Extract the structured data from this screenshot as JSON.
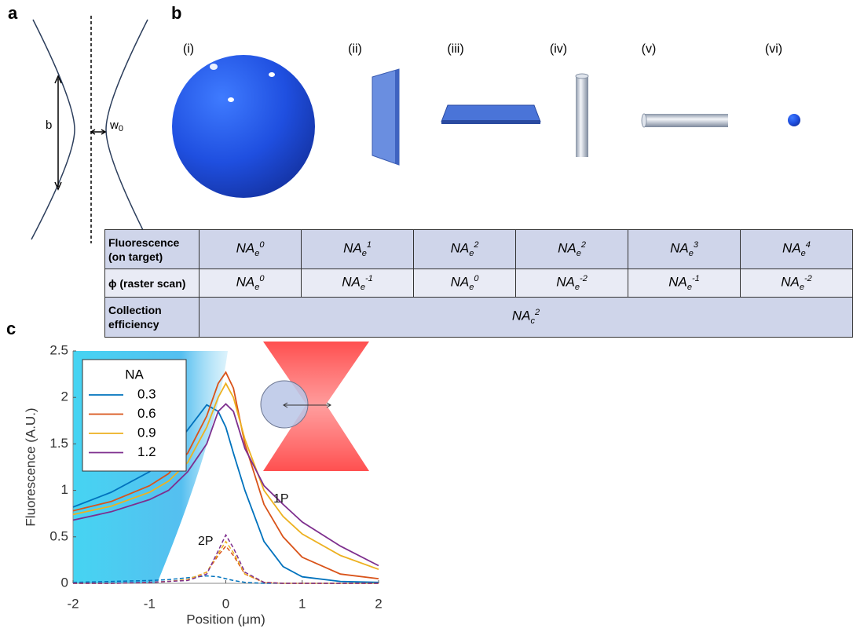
{
  "panel_labels": [
    "a",
    "b",
    "c"
  ],
  "panel_a": {
    "b_label": "b",
    "w_label": "w",
    "w_subscript": "0"
  },
  "panel_b": {
    "shape_labels": [
      "(i)",
      "(ii)",
      "(iii)",
      "(iv)",
      "(v)",
      "(vi)"
    ],
    "table": {
      "rows": [
        {
          "header": [
            "Fluorescence",
            "(on target)"
          ],
          "cells": [
            {
              "base": "NA",
              "sub": "e",
              "sup": "0"
            },
            {
              "base": "NA",
              "sub": "e",
              "sup": "1"
            },
            {
              "base": "NA",
              "sub": "e",
              "sup": "2"
            },
            {
              "base": "NA",
              "sub": "e",
              "sup": "2"
            },
            {
              "base": "NA",
              "sub": "e",
              "sup": "3"
            },
            {
              "base": "NA",
              "sub": "e",
              "sup": "4"
            }
          ]
        },
        {
          "header": [
            "ϕ (raster scan)"
          ],
          "cells": [
            {
              "base": "NA",
              "sub": "e",
              "sup": "0"
            },
            {
              "base": "NA",
              "sub": "e",
              "sup": "-1"
            },
            {
              "base": "NA",
              "sub": "e",
              "sup": "0"
            },
            {
              "base": "NA",
              "sub": "e",
              "sup": "-2"
            },
            {
              "base": "NA",
              "sub": "e",
              "sup": "-1"
            },
            {
              "base": "NA",
              "sub": "e",
              "sup": "-2"
            }
          ]
        },
        {
          "header": [
            "Collection",
            "efficiency"
          ],
          "cells": [
            {
              "base": "NA",
              "sub": "c",
              "sup": "2"
            }
          ]
        }
      ]
    }
  },
  "chart_data": {
    "type": "line",
    "x_label": "Position (μm)",
    "y_label": "Fluorescence (A.U.)",
    "xlim": [
      -2,
      2
    ],
    "ylim": [
      0,
      2.5
    ],
    "xticks": [
      -2,
      -1,
      0,
      1,
      2
    ],
    "yticks": [
      0,
      0.5,
      1,
      1.5,
      2,
      2.5
    ],
    "legend": "upper left",
    "legend_title": "NA",
    "annotations": [
      "1P",
      "2P"
    ],
    "x": [
      -2,
      -1.5,
      -1,
      -0.75,
      -0.5,
      -0.25,
      -0.1,
      0,
      0.1,
      0.25,
      0.5,
      0.75,
      1,
      1.5,
      2
    ],
    "series": [
      {
        "name": "0.3",
        "color": "#0072bd",
        "values": [
          0.82,
          0.98,
          1.2,
          1.38,
          1.65,
          1.92,
          1.85,
          1.68,
          1.4,
          1.0,
          0.45,
          0.18,
          0.07,
          0.02,
          0.01
        ],
        "values_2p": [
          0.01,
          0.02,
          0.03,
          0.04,
          0.06,
          0.08,
          0.07,
          0.05,
          0.03,
          0.01,
          0,
          0,
          0,
          0,
          0
        ]
      },
      {
        "name": "0.6",
        "color": "#d95319",
        "values": [
          0.78,
          0.88,
          1.05,
          1.18,
          1.4,
          1.8,
          2.15,
          2.27,
          2.1,
          1.5,
          0.85,
          0.5,
          0.28,
          0.1,
          0.05
        ],
        "values_2p": [
          0,
          0,
          0.01,
          0.02,
          0.04,
          0.12,
          0.3,
          0.4,
          0.3,
          0.1,
          0.01,
          0,
          0,
          0,
          0
        ]
      },
      {
        "name": "0.9",
        "color": "#edb120",
        "values": [
          0.74,
          0.83,
          0.98,
          1.1,
          1.3,
          1.68,
          2.0,
          2.15,
          2.0,
          1.55,
          1.0,
          0.72,
          0.53,
          0.3,
          0.15
        ],
        "values_2p": [
          0,
          0,
          0.01,
          0.02,
          0.04,
          0.12,
          0.32,
          0.45,
          0.33,
          0.1,
          0.01,
          0,
          0,
          0,
          0
        ]
      },
      {
        "name": "1.2",
        "color": "#7e2f8e",
        "values": [
          0.68,
          0.77,
          0.9,
          1.0,
          1.2,
          1.5,
          1.85,
          1.93,
          1.85,
          1.45,
          1.05,
          0.85,
          0.66,
          0.4,
          0.19
        ],
        "values_2p": [
          0,
          0,
          0.01,
          0.02,
          0.03,
          0.1,
          0.35,
          0.52,
          0.38,
          0.12,
          0.01,
          0,
          0,
          0,
          0
        ]
      }
    ]
  }
}
